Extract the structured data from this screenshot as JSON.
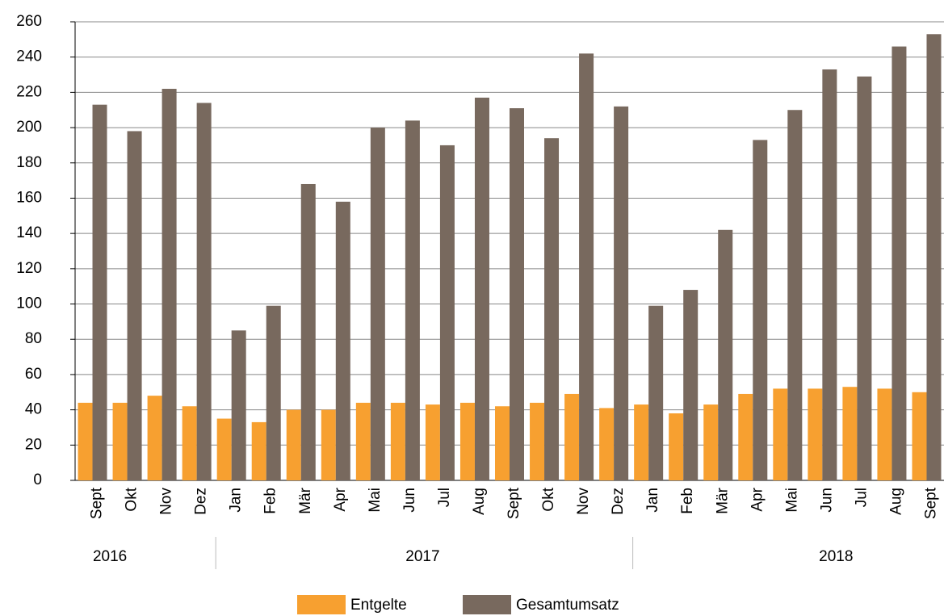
{
  "chart_data": {
    "type": "bar",
    "groups": [
      {
        "label": "2016",
        "categories": [
          "Sept",
          "Okt",
          "Nov",
          "Dez"
        ]
      },
      {
        "label": "2017",
        "categories": [
          "Jan",
          "Feb",
          "Mär",
          "Apr",
          "Mai",
          "Jun",
          "Jul",
          "Aug",
          "Sept",
          "Okt",
          "Nov",
          "Dez"
        ]
      },
      {
        "label": "2018",
        "categories": [
          "Jan",
          "Feb",
          "Mär",
          "Apr",
          "Mai",
          "Jun",
          "Jul",
          "Aug",
          "Sept"
        ]
      }
    ],
    "series": [
      {
        "name": "Entgelte",
        "color": "#f7a030",
        "values": [
          44,
          44,
          48,
          42,
          35,
          33,
          40,
          40,
          44,
          44,
          43,
          44,
          42,
          44,
          49,
          41,
          43,
          38,
          43,
          49,
          52,
          52,
          53,
          52,
          50
        ]
      },
      {
        "name": "Gesamtumsatz",
        "color": "#78695e",
        "values": [
          213,
          198,
          222,
          214,
          85,
          99,
          168,
          158,
          200,
          204,
          190,
          217,
          211,
          194,
          242,
          212,
          99,
          108,
          142,
          193,
          210,
          233,
          229,
          246,
          253
        ]
      }
    ],
    "ylim": [
      0,
      260
    ],
    "yticks": [
      0,
      20,
      40,
      60,
      80,
      100,
      120,
      140,
      160,
      180,
      200,
      220,
      240,
      260
    ],
    "grid": true,
    "legend": "bottom"
  }
}
